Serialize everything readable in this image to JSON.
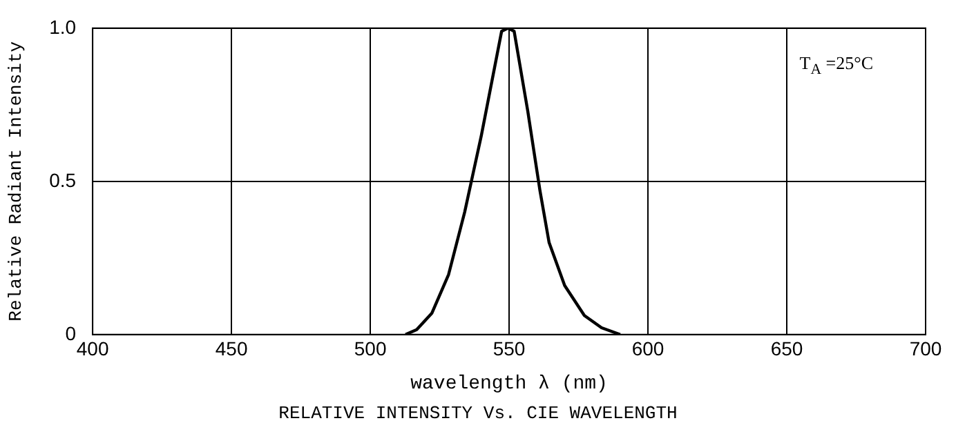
{
  "chart_data": {
    "type": "line",
    "xlabel": "wavelength λ (nm)",
    "ylabel": "Relative Radiant Intensity",
    "annotations": [
      "T$_{A}$ =25°C",
      "RELATIVE INTENSITY Vs. CIE WAVELENGTH"
    ],
    "x": [
      512.7,
      516.7,
      522.2,
      528.2,
      534,
      540,
      547.3,
      549.6,
      551.8,
      556.7,
      561.1,
      564.4,
      570,
      577.1,
      583.3,
      590
    ],
    "series": [
      {
        "color": "#000000",
        "values": [
          0,
          0.016,
          0.07,
          0.196,
          0.4,
          0.65,
          0.99,
          1,
          0.99,
          0.73,
          0.47,
          0.3,
          0.16,
          0.062,
          0.022,
          0
        ]
      }
    ],
    "xlim": [
      400,
      700
    ],
    "xticks": [
      400,
      450,
      500,
      550,
      600,
      650,
      700
    ],
    "ylim": [
      0,
      1
    ],
    "yticks": [
      0,
      0.5,
      {
        "value": 1,
        "label": "1.0"
      }
    ],
    "grid": true,
    "legend": false,
    "marker": "none",
    "line_style": "solid"
  }
}
